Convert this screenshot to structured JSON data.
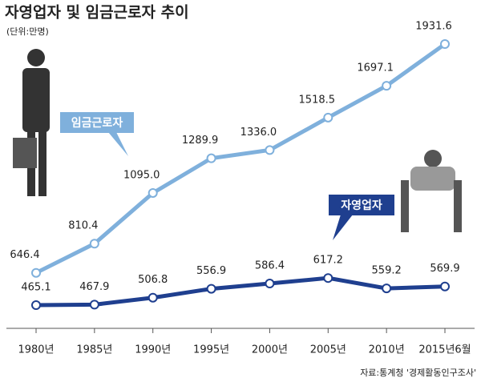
{
  "chart_data": {
    "type": "line",
    "title": "자영업자 및 임금근로자 추이",
    "subtitle": "(단위:만명)",
    "source": "자료:통계청 '경제활동인구조사'",
    "categories": [
      "1980년",
      "1985년",
      "1990년",
      "1995년",
      "2000년",
      "2005년",
      "2010년",
      "2015년6월"
    ],
    "series": [
      {
        "name": "임금근로자",
        "color": "#7fb0dc",
        "values": [
          646.4,
          810.4,
          1095.0,
          1289.9,
          1336.0,
          1518.5,
          1697.1,
          1931.6
        ],
        "value_labels": [
          "646.4",
          "810.4",
          "1095.0",
          "1289.9",
          "1336.0",
          "1518.5",
          "1697.1",
          "1931.6"
        ]
      },
      {
        "name": "자영업자",
        "color": "#1f3f8f",
        "values": [
          465.1,
          467.9,
          506.8,
          556.9,
          586.4,
          617.2,
          559.2,
          569.9
        ],
        "value_labels": [
          "465.1",
          "467.9",
          "506.8",
          "556.9",
          "586.4",
          "617.2",
          "559.2",
          "569.9"
        ]
      }
    ]
  }
}
